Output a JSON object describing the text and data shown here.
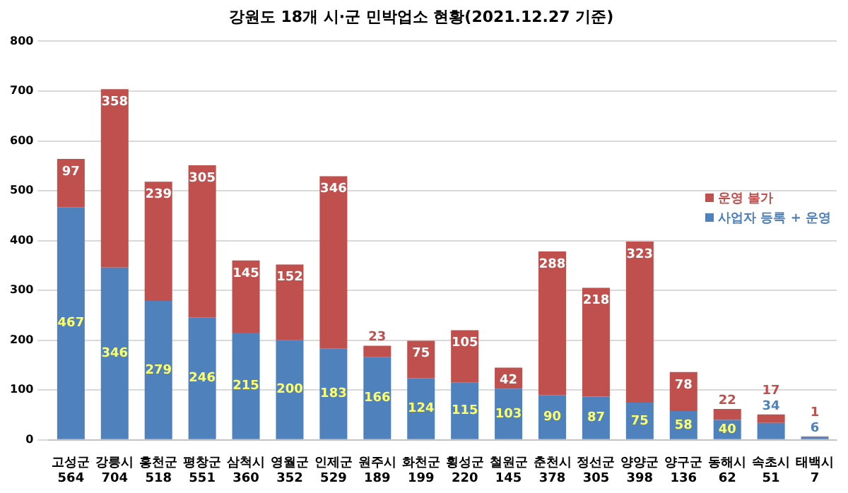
{
  "chart_data": {
    "type": "bar",
    "title": "강원도 18개 시·군 민박업소 현황(2021.12.27 기준)",
    "categories": [
      "고성군",
      "강릉시",
      "홍천군",
      "평창군",
      "삼척시",
      "영월군",
      "인제군",
      "원주시",
      "화천군",
      "횡성군",
      "철원군",
      "춘천시",
      "정선군",
      "양양군",
      "양구군",
      "동해시",
      "속초시",
      "태백시"
    ],
    "series": [
      {
        "name": "사업자 등록 + 운영",
        "color": "#4f81bd",
        "values": [
          467,
          346,
          279,
          246,
          215,
          200,
          183,
          166,
          124,
          115,
          103,
          90,
          87,
          75,
          58,
          40,
          34,
          6
        ]
      },
      {
        "name": "운영 불가",
        "color": "#c0504d",
        "values": [
          97,
          358,
          239,
          305,
          145,
          152,
          346,
          23,
          75,
          105,
          42,
          288,
          218,
          323,
          78,
          22,
          17,
          1
        ]
      }
    ],
    "totals": [
      "564",
      "704",
      "518",
      "551",
      "360",
      "352",
      "529",
      "189",
      "199",
      "220",
      "145",
      "378",
      "305",
      "398",
      "136",
      "62",
      "51",
      "7"
    ],
    "stacked": true,
    "data_labels": true,
    "legend": "right",
    "grid": "y",
    "ylim": [
      0,
      800
    ],
    "yticks": [
      0,
      100,
      200,
      300,
      400,
      500,
      600,
      700,
      800
    ]
  }
}
